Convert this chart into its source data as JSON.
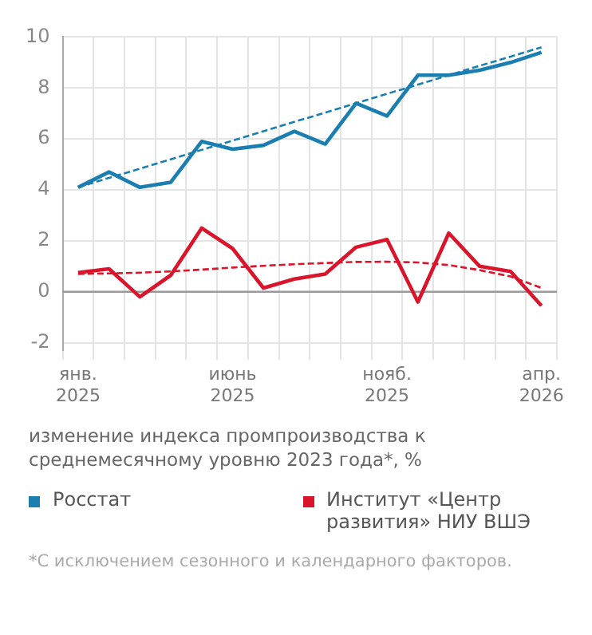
{
  "chart_data": {
    "type": "line",
    "subtitle": "изменение индекса промпроизводства к среднемесячному уровню 2023 года*, %",
    "categories": [
      "янв. 2025",
      null,
      null,
      null,
      null,
      "июнь 2025",
      null,
      null,
      null,
      null,
      "нояб. 2025",
      null,
      null,
      null,
      null,
      "апр. 2026"
    ],
    "series": [
      {
        "name": "Росстат",
        "color": "#1a7fb0",
        "values": [
          4.1,
          4.7,
          4.1,
          4.3,
          5.9,
          5.6,
          5.75,
          6.3,
          5.8,
          7.4,
          6.9,
          8.5,
          8.5,
          8.7,
          9.0,
          9.4
        ]
      },
      {
        "name": "Институт «Центр развития» НИУ ВШЭ",
        "color": "#d9142b",
        "values": [
          0.75,
          0.9,
          -0.2,
          0.65,
          2.5,
          1.7,
          0.15,
          0.5,
          0.7,
          1.75,
          2.05,
          -0.4,
          2.3,
          1.0,
          0.8,
          -0.55
        ]
      },
      {
        "color": "#1a7fb0",
        "line_style": "dashed",
        "values": [
          4.1,
          4.47,
          4.83,
          5.2,
          5.57,
          5.93,
          6.3,
          6.67,
          7.03,
          7.4,
          7.77,
          8.13,
          8.5,
          8.87,
          9.23,
          9.6
        ]
      },
      {
        "color": "#d9142b",
        "line_style": "dashed",
        "values": [
          0.7,
          0.72,
          0.75,
          0.8,
          0.87,
          0.95,
          1.02,
          1.08,
          1.13,
          1.17,
          1.18,
          1.15,
          1.05,
          0.85,
          0.6,
          0.15
        ]
      }
    ],
    "ylim": [
      -2.3,
      10
    ],
    "yticks": [
      -2,
      0,
      2,
      4,
      6,
      8,
      10
    ],
    "ref_lines": [
      {
        "axis": "y",
        "value": 0,
        "color": "#999999"
      }
    ],
    "grid": true,
    "legend": "bottom",
    "marker": "none",
    "line_style": "solid",
    "annotations": [
      "*С исключением сезонного и календарного факторов."
    ]
  }
}
